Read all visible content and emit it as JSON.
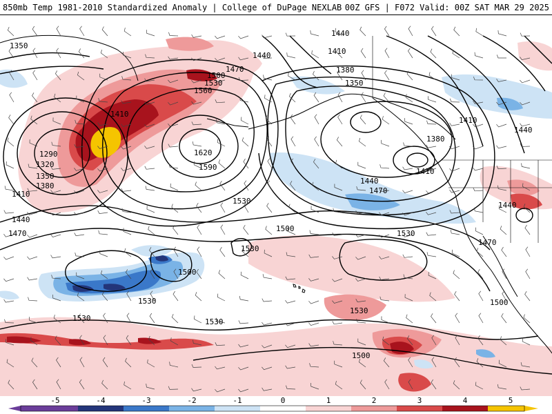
{
  "header": {
    "title_left": "850mb Temp 1981-2010 Standardized Anomaly | College of DuPage NEXLAB",
    "title_right": "00Z GFS | F072 Valid: 00Z SAT MAR 29 2025"
  },
  "colors": {
    "anomaly_scale": {
      "-5": "#6a3d9a",
      "-4": "#23357a",
      "-3": "#3a78c9",
      "-2": "#7ab3e6",
      "-1": "#cde3f5",
      "0": "#ffffff",
      "1": "#f8d4d4",
      "2": "#ee9a9a",
      "3": "#d94a4a",
      "4": "#a8131d",
      "5": "#f5c400"
    }
  },
  "colorbar": {
    "ticks": [
      "-5",
      "-4",
      "-3",
      "-2",
      "-1",
      "0",
      "1",
      "2",
      "3",
      "4",
      "5"
    ]
  },
  "contour_labels": [
    {
      "id": "lbl-1350-a",
      "text": "1350"
    },
    {
      "id": "lbl-1440-a",
      "text": "1440"
    },
    {
      "id": "lbl-1410-a",
      "text": "1410"
    },
    {
      "id": "lbl-1380-a",
      "text": "1380"
    },
    {
      "id": "lbl-1350-b",
      "text": "1350"
    },
    {
      "id": "lbl-1440-b",
      "text": "1440"
    },
    {
      "id": "lbl-1470-a",
      "text": "1470"
    },
    {
      "id": "lbl-1500-a",
      "text": "1500"
    },
    {
      "id": "lbl-1530-a",
      "text": "1530"
    },
    {
      "id": "lbl-1560-a",
      "text": "1560"
    },
    {
      "id": "lbl-1620",
      "text": "1620"
    },
    {
      "id": "lbl-1590",
      "text": "1590"
    },
    {
      "id": "lbl-1410-b",
      "text": "1410"
    },
    {
      "id": "lbl-1290",
      "text": "1290"
    },
    {
      "id": "lbl-1320",
      "text": "1320"
    },
    {
      "id": "lbl-1350-c",
      "text": "1350"
    },
    {
      "id": "lbl-1380-b",
      "text": "1380"
    },
    {
      "id": "lbl-1410-c",
      "text": "1410"
    },
    {
      "id": "lbl-1440-c",
      "text": "1440"
    },
    {
      "id": "lbl-1470-b",
      "text": "1470"
    },
    {
      "id": "lbl-1410-d",
      "text": "1410"
    },
    {
      "id": "lbl-1440-d",
      "text": "1440"
    },
    {
      "id": "lbl-1380-c",
      "text": "1380"
    },
    {
      "id": "lbl-1410-e",
      "text": "1410"
    },
    {
      "id": "lbl-1440-e",
      "text": "1440"
    },
    {
      "id": "lbl-1470-c",
      "text": "1470"
    },
    {
      "id": "lbl-1530-b",
      "text": "1530"
    },
    {
      "id": "lbl-1500-b",
      "text": "1500"
    },
    {
      "id": "lbl-1530-c",
      "text": "1530"
    },
    {
      "id": "lbl-1440-f",
      "text": "1440"
    },
    {
      "id": "lbl-1470-d",
      "text": "1470"
    },
    {
      "id": "lbl-1530-d",
      "text": "1530"
    },
    {
      "id": "lbl-1500-c",
      "text": "1500"
    },
    {
      "id": "lbl-1530-e",
      "text": "1530"
    },
    {
      "id": "lbl-1530-f",
      "text": "1530"
    },
    {
      "id": "lbl-1530-g",
      "text": "1530"
    },
    {
      "id": "lbl-1530-h",
      "text": "1530"
    },
    {
      "id": "lbl-1500-d",
      "text": "1500"
    },
    {
      "id": "lbl-1500-e",
      "text": "1500"
    }
  ]
}
